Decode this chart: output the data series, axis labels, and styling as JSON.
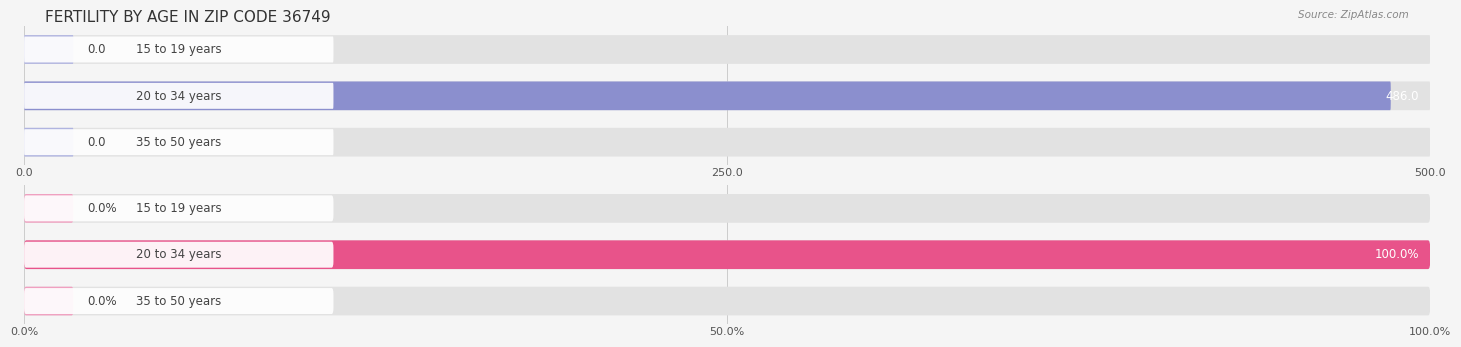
{
  "title": "FERTILITY BY AGE IN ZIP CODE 36749",
  "source": "Source: ZipAtlas.com",
  "top_chart": {
    "categories": [
      "15 to 19 years",
      "20 to 34 years",
      "35 to 50 years"
    ],
    "values": [
      0.0,
      486.0,
      0.0
    ],
    "xlim": [
      0,
      500.0
    ],
    "xticks": [
      0.0,
      250.0,
      500.0
    ],
    "bar_color": "#8b8fce",
    "bar_color_light": "#b0b4e0",
    "value_labels": [
      "0.0",
      "486.0",
      "0.0"
    ]
  },
  "bottom_chart": {
    "categories": [
      "15 to 19 years",
      "20 to 34 years",
      "35 to 50 years"
    ],
    "values": [
      0.0,
      100.0,
      0.0
    ],
    "xlim": [
      0,
      100.0
    ],
    "xticks": [
      0.0,
      50.0,
      100.0
    ],
    "xtick_labels": [
      "0.0%",
      "50.0%",
      "100.0%"
    ],
    "bar_color": "#e8538a",
    "bar_color_light": "#f0a0c0",
    "value_labels": [
      "0.0%",
      "100.0%",
      "0.0%"
    ]
  },
  "label_text_color": "#444444",
  "background_color": "#f5f5f5",
  "bar_bg_color": "#e2e2e2",
  "title_fontsize": 11,
  "source_fontsize": 7.5,
  "label_fontsize": 8.5,
  "value_fontsize": 8.5,
  "tick_fontsize": 8
}
